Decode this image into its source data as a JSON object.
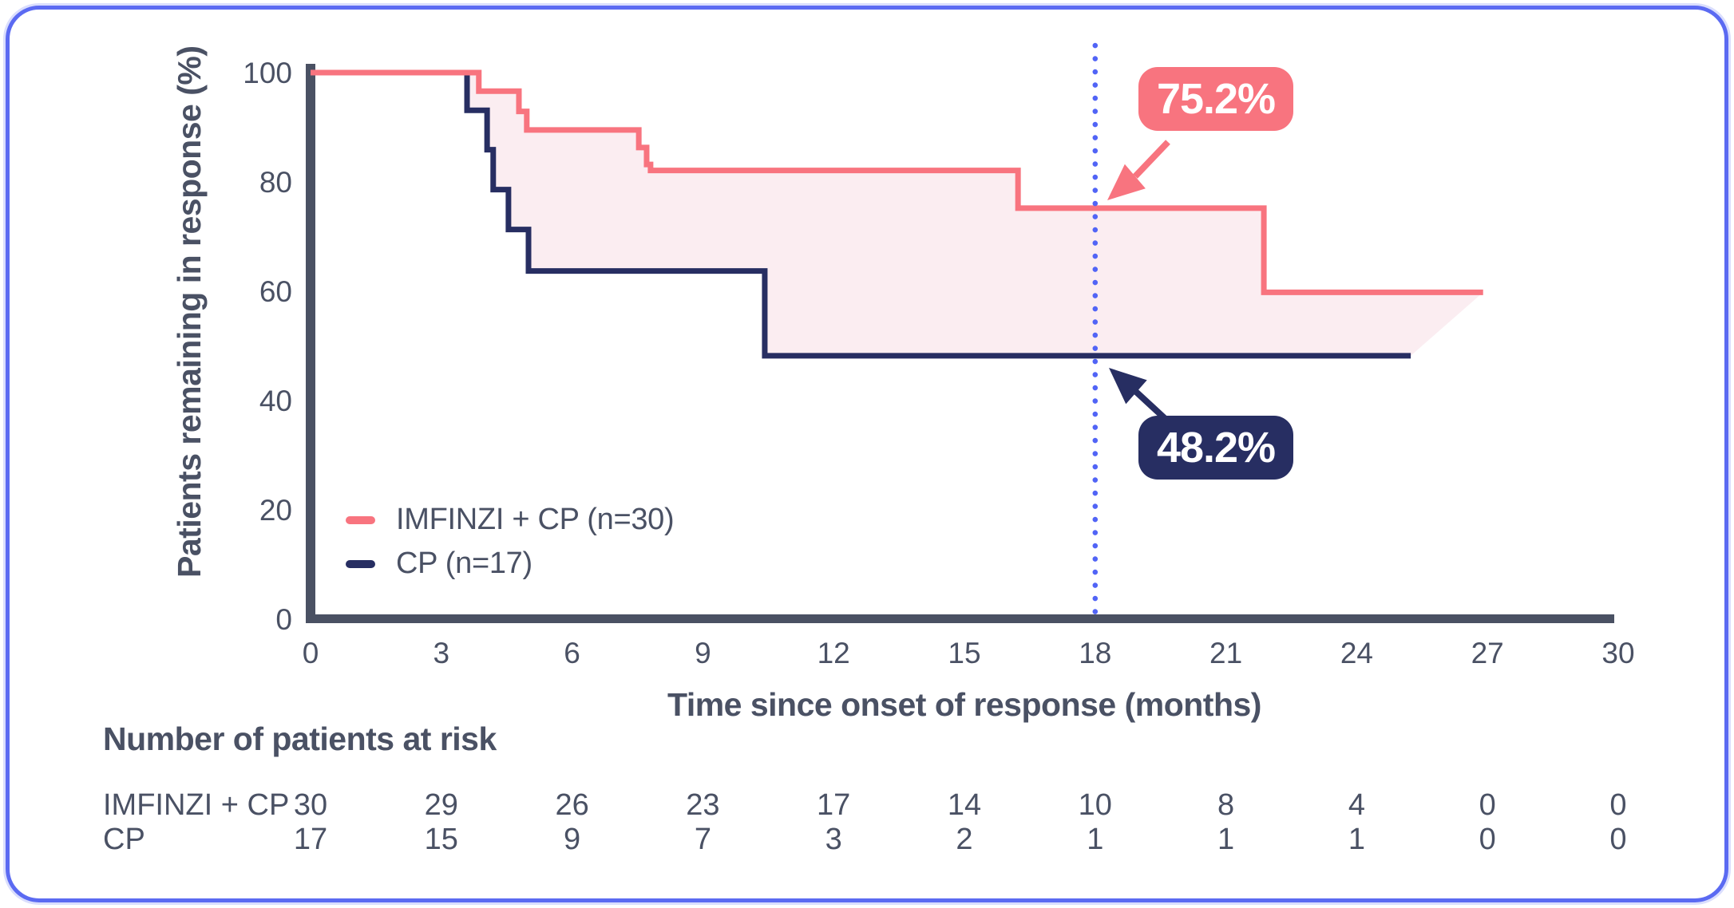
{
  "frame": {
    "border_color": "#5b6af2"
  },
  "chart_data": {
    "type": "line",
    "subtype": "kaplan-meier-step",
    "xlabel": "Time since onset of response (months)",
    "ylabel": "Patients remaining in response (%)",
    "xlim": [
      0,
      30
    ],
    "ylim": [
      0,
      100
    ],
    "x_ticks": [
      0,
      3,
      6,
      9,
      12,
      15,
      18,
      21,
      24,
      27,
      30
    ],
    "y_ticks": [
      0,
      20,
      40,
      60,
      80,
      100
    ],
    "grid": false,
    "reference_line": {
      "x": 18,
      "style": "dotted",
      "color": "#5164f6"
    },
    "series": [
      {
        "name": "IMFINZI + CP (n=30)",
        "color": "#f8747f",
        "band_fill": "#fbedf1",
        "steps": [
          [
            0,
            100
          ],
          [
            3.86,
            96.6
          ],
          [
            4.78,
            92.9
          ],
          [
            4.96,
            89.5
          ],
          [
            7.53,
            86.3
          ],
          [
            7.71,
            83.2
          ],
          [
            7.8,
            82.1
          ],
          [
            16.23,
            75.2
          ],
          [
            21.87,
            59.8
          ]
        ],
        "end_x": 26.9,
        "callout": {
          "label": "75.2%",
          "at_month": 18,
          "value": 75.2
        }
      },
      {
        "name": "CP (n=17)",
        "color": "#272e62",
        "steps": [
          [
            0,
            100
          ],
          [
            3.59,
            93.1
          ],
          [
            4.05,
            85.9
          ],
          [
            4.19,
            78.6
          ],
          [
            4.54,
            71.3
          ],
          [
            5.0,
            63.7
          ],
          [
            10.42,
            48.2
          ]
        ],
        "end_x": 25.24,
        "callout": {
          "label": "48.2%",
          "at_month": 18,
          "value": 48.2
        }
      }
    ],
    "risk_table": {
      "header": "Number of patients at risk",
      "time_points": [
        0,
        3,
        6,
        9,
        12,
        15,
        18,
        21,
        24,
        27,
        30
      ],
      "rows": [
        {
          "label": "IMFINZI + CP",
          "values": [
            30,
            29,
            26,
            23,
            17,
            14,
            10,
            8,
            4,
            0,
            0
          ]
        },
        {
          "label": "CP",
          "values": [
            17,
            15,
            9,
            7,
            3,
            2,
            1,
            1,
            1,
            0,
            0
          ]
        }
      ]
    }
  }
}
